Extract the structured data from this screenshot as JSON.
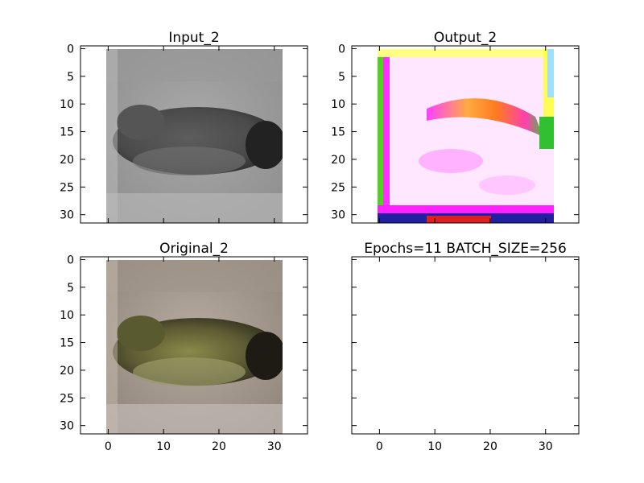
{
  "chart_data": [
    {
      "type": "heatmap",
      "title": "Input_2",
      "xlabel": "",
      "ylabel": "",
      "xlim": [
        -5,
        36
      ],
      "ylim": [
        31.5,
        -0.5
      ],
      "image_extent": [
        -0.5,
        31.5
      ],
      "y_ticks": [
        0,
        5,
        10,
        15,
        20,
        25,
        30
      ],
      "x_ticks": [],
      "grid": false,
      "image": "grayscale photo of a toad on rock (input image)"
    },
    {
      "type": "heatmap",
      "title": "Output_2",
      "xlabel": "",
      "ylabel": "",
      "xlim": [
        -5,
        36
      ],
      "ylim": [
        31.5,
        -0.5
      ],
      "image_extent": [
        -0.5,
        31.5
      ],
      "y_ticks": [
        0,
        5,
        10,
        15,
        20,
        25,
        30
      ],
      "x_ticks": [],
      "grid": false,
      "image": "colorized network output, mostly white/magenta with yellow band"
    },
    {
      "type": "heatmap",
      "title": "Original_2",
      "xlabel": "",
      "ylabel": "",
      "xlim": [
        -5,
        36
      ],
      "ylim": [
        31.5,
        -0.5
      ],
      "image_extent": [
        -0.5,
        31.5
      ],
      "y_ticks": [
        0,
        5,
        10,
        15,
        20,
        25,
        30
      ],
      "x_ticks": [
        0,
        10,
        20,
        30
      ],
      "grid": false,
      "image": "original color photo of a toad on rock"
    },
    {
      "type": "heatmap",
      "title": "Epochs=11 BATCH_SIZE=256",
      "xlabel": "",
      "ylabel": "",
      "xlim": [
        -5,
        36
      ],
      "ylim": [
        31.5,
        -0.5
      ],
      "y_ticks": [],
      "x_ticks": [
        0,
        10,
        20,
        30
      ],
      "grid": false,
      "image": "empty"
    }
  ],
  "colors": {
    "axes_edge": "#000000",
    "background": "#ffffff"
  }
}
